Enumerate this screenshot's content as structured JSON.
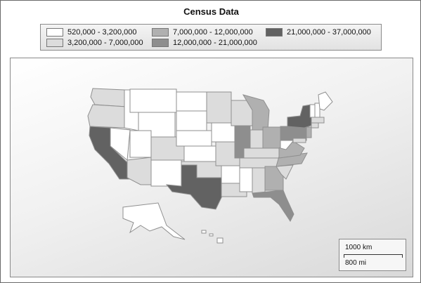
{
  "title": "Census Data",
  "legend": [
    {
      "label": "520,000 - 3,200,000",
      "color": "#ffffff"
    },
    {
      "label": "3,200,000 - 7,000,000",
      "color": "#dcdcdc"
    },
    {
      "label": "7,000,000 - 12,000,000",
      "color": "#b0b0b0"
    },
    {
      "label": "12,000,000 - 21,000,000",
      "color": "#8e8e8e"
    },
    {
      "label": "21,000,000 - 37,000,000",
      "color": "#626262"
    }
  ],
  "scale": {
    "km": "1000 km",
    "mi": "800 mi"
  }
}
